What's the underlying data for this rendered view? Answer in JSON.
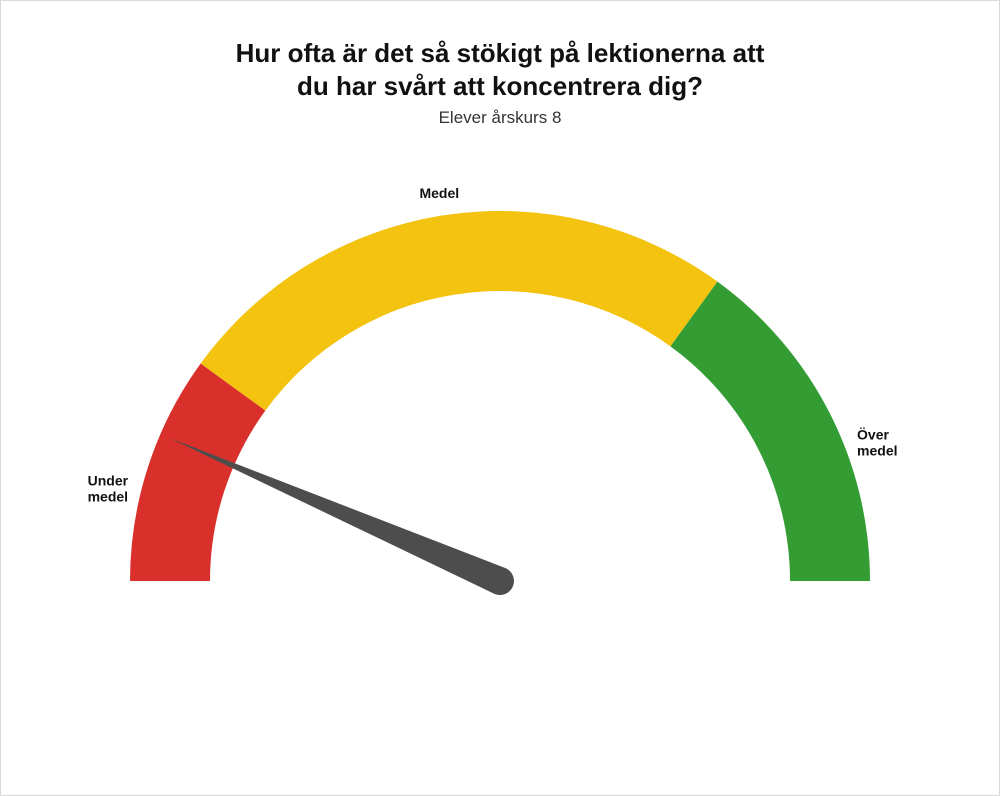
{
  "title": "Hur ofta är det så stökigt på lektionerna att\ndu har svårt att koncentrera dig?",
  "subtitle": "Elever årskurs 8",
  "gauge": {
    "type": "gauge",
    "min": 0,
    "max": 100,
    "value": 13,
    "outer_radius": 370,
    "inner_radius": 290,
    "background_color": "#ffffff",
    "needle_color": "#4d4d4d",
    "segments": [
      {
        "from": 0,
        "to": 20,
        "color": "#d9302c",
        "label": "Under\nmedel",
        "label_pos": "left"
      },
      {
        "from": 20,
        "to": 70,
        "color": "#f3c30f",
        "label": "Medel",
        "label_pos": "top"
      },
      {
        "from": 70,
        "to": 100,
        "color": "#339c33",
        "label": "Över\nmedel",
        "label_pos": "right"
      }
    ],
    "label_fontsize": 14,
    "label_fontweight": 700,
    "title_fontsize": 26,
    "subtitle_fontsize": 17
  }
}
